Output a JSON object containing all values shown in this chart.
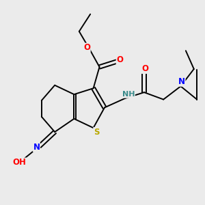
{
  "bg_color": "#ebebeb",
  "atom_colors": {
    "C": "#000000",
    "H": "#3a8b8b",
    "N": "#0000ff",
    "O": "#ff0000",
    "S": "#b8a800"
  },
  "bond_color": "#000000",
  "figsize": [
    3.0,
    3.0
  ],
  "dpi": 100,
  "lw": 1.4
}
